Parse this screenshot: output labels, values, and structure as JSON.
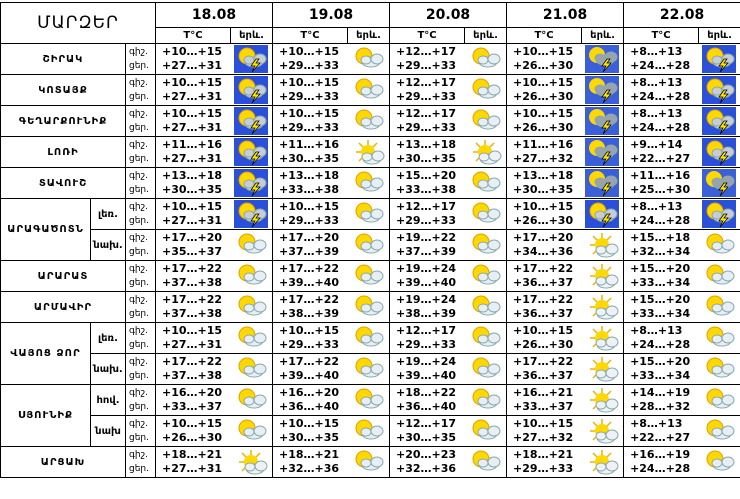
{
  "header": {
    "title": "ՄԱՐԶԵՐ",
    "dates": [
      "18.08",
      "19.08",
      "20.08",
      "21.08",
      "22.08"
    ],
    "temp_label": "T°C",
    "icon_label": "երև."
  },
  "labels": {
    "night": "գիշ.",
    "day": "ցեր."
  },
  "regions": [
    {
      "name": "ՇԻՐԱԿ",
      "rows": [
        {
          "days": [
            [
              "+10…+15",
              "+27…+31"
            ],
            [
              "+10…+15",
              "+29…+33"
            ],
            [
              "+12…+17",
              "+29…+33"
            ],
            [
              "+10…+15",
              "+26…+30"
            ],
            [
              "+8…+13",
              "+24…+28"
            ]
          ]
        }
      ]
    },
    {
      "name": "ԿՈՏԱՅՔ",
      "rows": [
        {
          "days": [
            [
              "+10…+15",
              "+27…+31"
            ],
            [
              "+10…+15",
              "+29…+33"
            ],
            [
              "+12…+17",
              "+29…+33"
            ],
            [
              "+10…+15",
              "+26…+30"
            ],
            [
              "+8…+13",
              "+24…+28"
            ]
          ]
        }
      ]
    },
    {
      "name": "ԳԵՂԱՐՔՈՒՆԻՔ",
      "rows": [
        {
          "days": [
            [
              "+10…+15",
              "+27…+31"
            ],
            [
              "+10…+15",
              "+29…+33"
            ],
            [
              "+12…+17",
              "+29…+33"
            ],
            [
              "+10…+15",
              "+26…+30"
            ],
            [
              "+8…+13",
              "+24…+28"
            ]
          ]
        }
      ]
    },
    {
      "name": "ԼՈՌԻ",
      "rows": [
        {
          "days": [
            [
              "+11…+16",
              "+27…+31"
            ],
            [
              "+11…+16",
              "+30…+35"
            ],
            [
              "+13…+18",
              "+30…+35"
            ],
            [
              "+11…+16",
              "+27…+32"
            ],
            [
              "+9…+14",
              "+22…+27"
            ]
          ]
        }
      ]
    },
    {
      "name": "ՏԱՎՈՒՇ",
      "rows": [
        {
          "days": [
            [
              "+13…+18",
              "+30…+35"
            ],
            [
              "+13…+18",
              "+33…+38"
            ],
            [
              "+15…+20",
              "+33…+38"
            ],
            [
              "+13…+18",
              "+30…+35"
            ],
            [
              "+11…+16",
              "+25…+30"
            ]
          ]
        }
      ]
    },
    {
      "name": "ԱՐԱԳԱԾՈՏՆ",
      "rows": [
        {
          "zone": "լեռ.",
          "days": [
            [
              "+10…+15",
              "+27…+31"
            ],
            [
              "+10…+15",
              "+29…+33"
            ],
            [
              "+12…+17",
              "+29…+33"
            ],
            [
              "+10…+15",
              "+26…+30"
            ],
            [
              "+8…+13",
              "+24…+28"
            ]
          ]
        },
        {
          "zone": "նախ.",
          "days": [
            [
              "+17…+20",
              "+35…+37"
            ],
            [
              "+17…+20",
              "+37…+39"
            ],
            [
              "+19…+22",
              "+37…+39"
            ],
            [
              "+17…+20",
              "+34…+36"
            ],
            [
              "+15…+18",
              "+32…+34"
            ]
          ]
        }
      ]
    },
    {
      "name": "ԱՐԱՐԱՏ",
      "rows": [
        {
          "days": [
            [
              "+17…+22",
              "+37…+38"
            ],
            [
              "+17…+22",
              "+39…+40"
            ],
            [
              "+19…+24",
              "+39…+40"
            ],
            [
              "+17…+22",
              "+36…+37"
            ],
            [
              "+15…+20",
              "+33…+34"
            ]
          ]
        }
      ]
    },
    {
      "name": "ԱՐՄԱՎԻՐ",
      "rows": [
        {
          "days": [
            [
              "+17…+22",
              "+37…+38"
            ],
            [
              "+17…+22",
              "+38…+39"
            ],
            [
              "+19…+24",
              "+38…+39"
            ],
            [
              "+17…+22",
              "+36…+37"
            ],
            [
              "+15…+20",
              "+33…+34"
            ]
          ]
        }
      ]
    },
    {
      "name": "ՎԱՅՈՑ ՁՈՐ",
      "rows": [
        {
          "zone": "լեռ.",
          "days": [
            [
              "+10…+15",
              "+27…+31"
            ],
            [
              "+10…+15",
              "+29…+33"
            ],
            [
              "+12…+17",
              "+29…+33"
            ],
            [
              "+10…+15",
              "+26…+30"
            ],
            [
              "+8…+13",
              "+24…+28"
            ]
          ]
        },
        {
          "zone": "նախ.",
          "days": [
            [
              "+17…+22",
              "+37…+38"
            ],
            [
              "+17…+22",
              "+39…+40"
            ],
            [
              "+19…+24",
              "+39…+40"
            ],
            [
              "+17…+22",
              "+36…+37"
            ],
            [
              "+15…+20",
              "+33…+34"
            ]
          ]
        }
      ]
    },
    {
      "name": "ՍՅՈՒՆԻՔ",
      "rows": [
        {
          "zone": "հով.",
          "days": [
            [
              "+16…+20",
              "+33…+37"
            ],
            [
              "+16…+20",
              "+36…+40"
            ],
            [
              "+18…+22",
              "+36…+40"
            ],
            [
              "+16…+21",
              "+33…+37"
            ],
            [
              "+14…+19",
              "+28…+32"
            ]
          ]
        },
        {
          "zone": "նախ",
          "days": [
            [
              "+10…+15",
              "+26…+30"
            ],
            [
              "+10…+15",
              "+30…+35"
            ],
            [
              "+12…+17",
              "+30…+35"
            ],
            [
              "+10…+15",
              "+27…+32"
            ],
            [
              "+8…+13",
              "+22…+27"
            ]
          ]
        }
      ]
    },
    {
      "name": "ԱՐՑԱԽ",
      "rows": [
        {
          "days": [
            [
              "+18…+21",
              "+27…+31"
            ],
            [
              "+18…+21",
              "+32…+36"
            ],
            [
              "+20…+23",
              "+32…+36"
            ],
            [
              "+18…+21",
              "+29…+33"
            ],
            [
              "+16…+19",
              "+24…+28"
            ]
          ]
        }
      ]
    }
  ]
}
